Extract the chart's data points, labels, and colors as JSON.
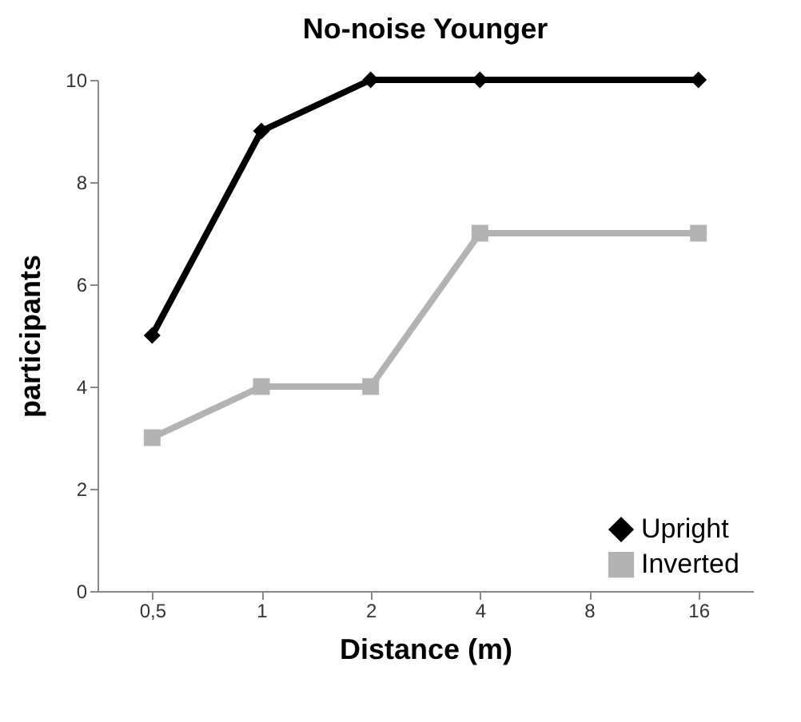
{
  "chart_data": {
    "type": "line",
    "title": "No-noise Younger",
    "xlabel": "Distance (m)",
    "ylabel": "participants",
    "categories": [
      "0,5",
      "1",
      "2",
      "4",
      "8",
      "16"
    ],
    "series": [
      {
        "name": "Upright",
        "color": "#000000",
        "marker": "diamond",
        "values": [
          5,
          9,
          10,
          10,
          null,
          10
        ]
      },
      {
        "name": "Inverted",
        "color": "#b3b3b3",
        "marker": "square",
        "values": [
          3,
          4,
          4,
          7,
          null,
          7
        ]
      }
    ],
    "ylim": [
      0,
      10
    ],
    "yticks": [
      0,
      2,
      4,
      6,
      8,
      10
    ],
    "grid": false,
    "legend": "bottom right",
    "line_style": "solid"
  }
}
